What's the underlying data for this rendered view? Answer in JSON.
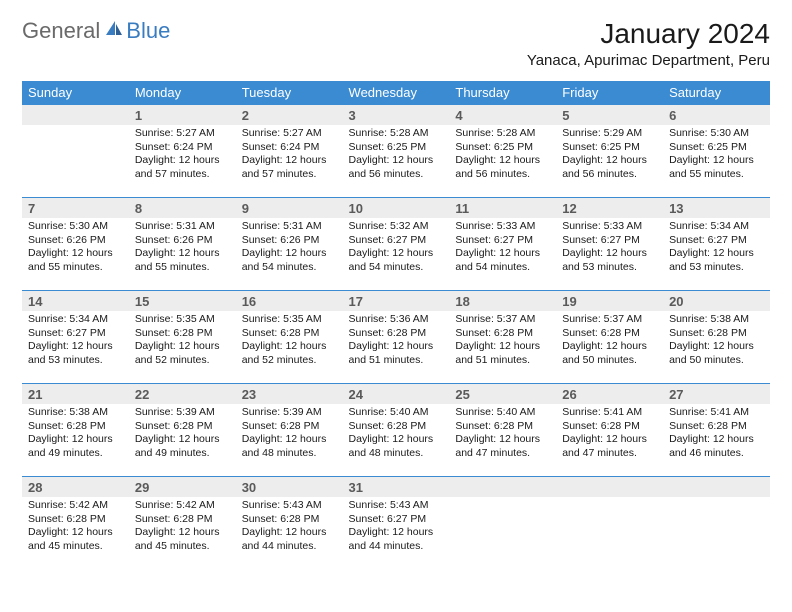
{
  "logo": {
    "general": "General",
    "blue": "Blue"
  },
  "title": "January 2024",
  "location": "Yanaca, Apurimac Department, Peru",
  "colors": {
    "header_bg": "#3a8bd1",
    "daynum_bg": "#ededed",
    "border": "#3a8bd1",
    "logo_gray": "#6a6a6a",
    "logo_blue": "#3a7cc0"
  },
  "weekdays": [
    "Sunday",
    "Monday",
    "Tuesday",
    "Wednesday",
    "Thursday",
    "Friday",
    "Saturday"
  ],
  "weeks": [
    [
      null,
      {
        "n": "1",
        "sr": "5:27 AM",
        "ss": "6:24 PM",
        "dl": "12 hours and 57 minutes."
      },
      {
        "n": "2",
        "sr": "5:27 AM",
        "ss": "6:24 PM",
        "dl": "12 hours and 57 minutes."
      },
      {
        "n": "3",
        "sr": "5:28 AM",
        "ss": "6:25 PM",
        "dl": "12 hours and 56 minutes."
      },
      {
        "n": "4",
        "sr": "5:28 AM",
        "ss": "6:25 PM",
        "dl": "12 hours and 56 minutes."
      },
      {
        "n": "5",
        "sr": "5:29 AM",
        "ss": "6:25 PM",
        "dl": "12 hours and 56 minutes."
      },
      {
        "n": "6",
        "sr": "5:30 AM",
        "ss": "6:25 PM",
        "dl": "12 hours and 55 minutes."
      }
    ],
    [
      {
        "n": "7",
        "sr": "5:30 AM",
        "ss": "6:26 PM",
        "dl": "12 hours and 55 minutes."
      },
      {
        "n": "8",
        "sr": "5:31 AM",
        "ss": "6:26 PM",
        "dl": "12 hours and 55 minutes."
      },
      {
        "n": "9",
        "sr": "5:31 AM",
        "ss": "6:26 PM",
        "dl": "12 hours and 54 minutes."
      },
      {
        "n": "10",
        "sr": "5:32 AM",
        "ss": "6:27 PM",
        "dl": "12 hours and 54 minutes."
      },
      {
        "n": "11",
        "sr": "5:33 AM",
        "ss": "6:27 PM",
        "dl": "12 hours and 54 minutes."
      },
      {
        "n": "12",
        "sr": "5:33 AM",
        "ss": "6:27 PM",
        "dl": "12 hours and 53 minutes."
      },
      {
        "n": "13",
        "sr": "5:34 AM",
        "ss": "6:27 PM",
        "dl": "12 hours and 53 minutes."
      }
    ],
    [
      {
        "n": "14",
        "sr": "5:34 AM",
        "ss": "6:27 PM",
        "dl": "12 hours and 53 minutes."
      },
      {
        "n": "15",
        "sr": "5:35 AM",
        "ss": "6:28 PM",
        "dl": "12 hours and 52 minutes."
      },
      {
        "n": "16",
        "sr": "5:35 AM",
        "ss": "6:28 PM",
        "dl": "12 hours and 52 minutes."
      },
      {
        "n": "17",
        "sr": "5:36 AM",
        "ss": "6:28 PM",
        "dl": "12 hours and 51 minutes."
      },
      {
        "n": "18",
        "sr": "5:37 AM",
        "ss": "6:28 PM",
        "dl": "12 hours and 51 minutes."
      },
      {
        "n": "19",
        "sr": "5:37 AM",
        "ss": "6:28 PM",
        "dl": "12 hours and 50 minutes."
      },
      {
        "n": "20",
        "sr": "5:38 AM",
        "ss": "6:28 PM",
        "dl": "12 hours and 50 minutes."
      }
    ],
    [
      {
        "n": "21",
        "sr": "5:38 AM",
        "ss": "6:28 PM",
        "dl": "12 hours and 49 minutes."
      },
      {
        "n": "22",
        "sr": "5:39 AM",
        "ss": "6:28 PM",
        "dl": "12 hours and 49 minutes."
      },
      {
        "n": "23",
        "sr": "5:39 AM",
        "ss": "6:28 PM",
        "dl": "12 hours and 48 minutes."
      },
      {
        "n": "24",
        "sr": "5:40 AM",
        "ss": "6:28 PM",
        "dl": "12 hours and 48 minutes."
      },
      {
        "n": "25",
        "sr": "5:40 AM",
        "ss": "6:28 PM",
        "dl": "12 hours and 47 minutes."
      },
      {
        "n": "26",
        "sr": "5:41 AM",
        "ss": "6:28 PM",
        "dl": "12 hours and 47 minutes."
      },
      {
        "n": "27",
        "sr": "5:41 AM",
        "ss": "6:28 PM",
        "dl": "12 hours and 46 minutes."
      }
    ],
    [
      {
        "n": "28",
        "sr": "5:42 AM",
        "ss": "6:28 PM",
        "dl": "12 hours and 45 minutes."
      },
      {
        "n": "29",
        "sr": "5:42 AM",
        "ss": "6:28 PM",
        "dl": "12 hours and 45 minutes."
      },
      {
        "n": "30",
        "sr": "5:43 AM",
        "ss": "6:28 PM",
        "dl": "12 hours and 44 minutes."
      },
      {
        "n": "31",
        "sr": "5:43 AM",
        "ss": "6:27 PM",
        "dl": "12 hours and 44 minutes."
      },
      null,
      null,
      null
    ]
  ],
  "labels": {
    "sunrise": "Sunrise:",
    "sunset": "Sunset:",
    "daylight": "Daylight:"
  }
}
